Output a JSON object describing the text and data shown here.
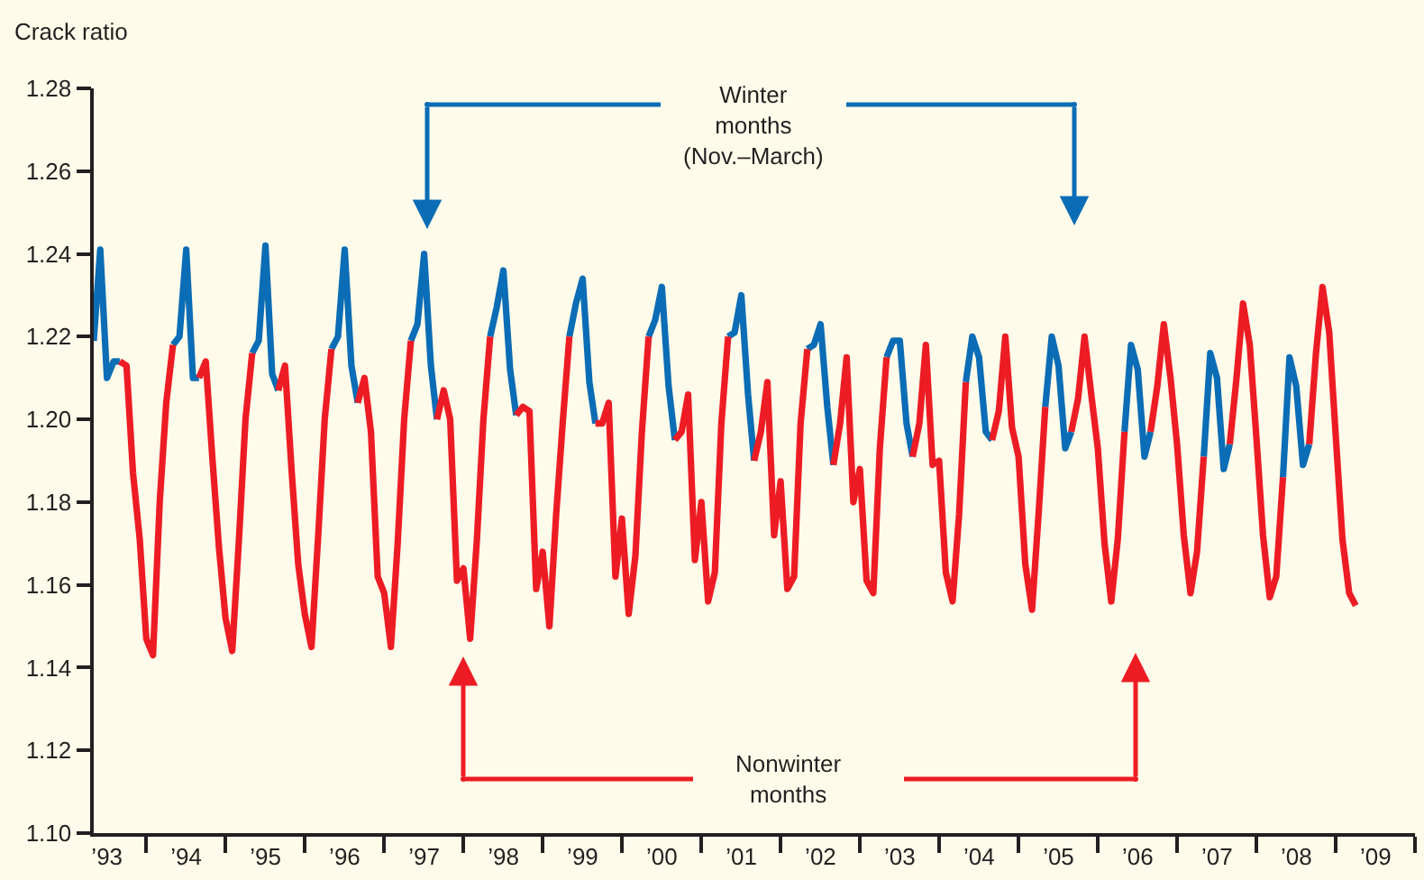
{
  "chart_data": {
    "type": "line",
    "ylabel": "Crack ratio",
    "annotations": [
      "Winter\nmonths\n(Nov.–March)",
      "Nonwinter\nmonths"
    ],
    "xlim": [
      "1992-11",
      "2009-07"
    ],
    "xticks": [
      {
        "value": "1993-01",
        "label": "’93"
      },
      {
        "value": "1994-01",
        "label": "’94"
      },
      {
        "value": "1995-01",
        "label": "’95"
      },
      {
        "value": "1996-01",
        "label": "’96"
      },
      {
        "value": "1997-01",
        "label": "’97"
      },
      {
        "value": "1998-01",
        "label": "’98"
      },
      {
        "value": "1999-01",
        "label": "’99"
      },
      {
        "value": "2000-01",
        "label": "’00"
      },
      {
        "value": "2001-01",
        "label": "’01"
      },
      {
        "value": "2002-01",
        "label": "’02"
      },
      {
        "value": "2003-01",
        "label": "’03"
      },
      {
        "value": "2004-01",
        "label": "’04"
      },
      {
        "value": "2005-01",
        "label": "’05"
      },
      {
        "value": "2006-01",
        "label": "’06"
      },
      {
        "value": "2007-01",
        "label": "’07"
      },
      {
        "value": "2008-01",
        "label": "’08"
      },
      {
        "value": "2009-01",
        "label": "’09"
      },
      {
        "value": "1993-07",
        "label": null
      },
      {
        "value": "1994-07",
        "label": null
      },
      {
        "value": "1995-07",
        "label": null
      },
      {
        "value": "1996-07",
        "label": null
      },
      {
        "value": "1997-07",
        "label": null
      },
      {
        "value": "1998-07",
        "label": null
      },
      {
        "value": "1999-07",
        "label": null
      },
      {
        "value": "2000-07",
        "label": null
      },
      {
        "value": "2001-07",
        "label": null
      },
      {
        "value": "2002-07",
        "label": null
      },
      {
        "value": "2003-07",
        "label": null
      },
      {
        "value": "2004-07",
        "label": null
      },
      {
        "value": "2005-07",
        "label": null
      },
      {
        "value": "2006-07",
        "label": null
      },
      {
        "value": "2007-07",
        "label": null
      },
      {
        "value": "2008-07",
        "label": null
      },
      {
        "value": "2009-07",
        "label": null
      }
    ],
    "ylim": [
      1.1,
      1.28
    ],
    "yticks": [
      {
        "value": 1.1,
        "label": "1.10"
      },
      {
        "value": 1.12,
        "label": "1.12"
      },
      {
        "value": 1.14,
        "label": "1.14"
      },
      {
        "value": 1.16,
        "label": "1.16"
      },
      {
        "value": 1.18,
        "label": "1.18"
      },
      {
        "value": 1.2,
        "label": "1.20"
      },
      {
        "value": 1.22,
        "label": "1.22"
      },
      {
        "value": 1.24,
        "label": "1.24"
      },
      {
        "value": 1.26,
        "label": "1.26"
      },
      {
        "value": 1.28,
        "label": "1.28"
      }
    ],
    "series": [
      {
        "color": "#0b6db5",
        "x": [
          "1992-11",
          "1992-12",
          "1993-01",
          "1993-02",
          "1993-03",
          "1993-04",
          "1993-11",
          "1993-12",
          "1994-01",
          "1994-02",
          "1994-03",
          "1994-04",
          "1994-11",
          "1994-12",
          "1995-01",
          "1995-02",
          "1995-03",
          "1995-04",
          "1995-11",
          "1995-12",
          "1996-01",
          "1996-02",
          "1996-03",
          "1996-04",
          "1996-11",
          "1996-12",
          "1997-01",
          "1997-02",
          "1997-03",
          "1997-04",
          "1997-11",
          "1997-12",
          "1998-01",
          "1998-02",
          "1998-03",
          "1998-04",
          "1998-11",
          "1998-12",
          "1999-01",
          "1999-02",
          "1999-03",
          "1999-04",
          "1999-11",
          "1999-12",
          "2000-01",
          "2000-02",
          "2000-03",
          "2000-04",
          "2000-11",
          "2000-12",
          "2001-01",
          "2001-02",
          "2001-03",
          "2001-04",
          "2001-11",
          "2001-12",
          "2002-01",
          "2002-02",
          "2002-03",
          "2002-04",
          "2002-11",
          "2002-12",
          "2003-01",
          "2003-02",
          "2003-03",
          "2003-04",
          "2003-11",
          "2003-12",
          "2004-01",
          "2004-02",
          "2004-03",
          "2004-04",
          "2004-11",
          "2004-12",
          "2005-01",
          "2005-02",
          "2005-03",
          "2005-04",
          "2005-11",
          "2005-12",
          "2006-01",
          "2006-02",
          "2006-03",
          "2006-04",
          "2006-11",
          "2006-12",
          "2007-01",
          "2007-02",
          "2007-03",
          "2007-04",
          "2007-11",
          "2007-12",
          "2008-01",
          "2008-02",
          "2008-03"
        ],
        "values": [
          1.219,
          1.241,
          1.21,
          1.214,
          1.214,
          null,
          1.218,
          1.22,
          1.241,
          1.21,
          1.21,
          null,
          1.216,
          1.219,
          1.242,
          1.211,
          1.207,
          null,
          1.217,
          1.22,
          1.241,
          1.213,
          1.204,
          null,
          1.219,
          1.223,
          1.24,
          1.213,
          1.2,
          null,
          1.22,
          1.227,
          1.236,
          1.212,
          1.201,
          null,
          1.22,
          1.228,
          1.234,
          1.209,
          1.199,
          null,
          1.22,
          1.224,
          1.232,
          1.208,
          1.195,
          null,
          1.22,
          1.221,
          1.23,
          1.206,
          1.19,
          null,
          1.217,
          1.218,
          1.223,
          1.203,
          1.189,
          null,
          1.215,
          1.219,
          1.219,
          1.199,
          1.191,
          null,
          1.209,
          1.22,
          1.215,
          1.197,
          1.195,
          null,
          1.203,
          1.22,
          1.213,
          1.193,
          1.197,
          null,
          1.197,
          1.218,
          1.212,
          1.191,
          1.197,
          null,
          1.191,
          1.216,
          1.21,
          1.188,
          1.194,
          null,
          1.186,
          1.215,
          1.208,
          1.189,
          1.194
        ]
      },
      {
        "color": "#ed1c24",
        "x": [
          "1993-03",
          "1993-04",
          "1993-05",
          "1993-06",
          "1993-07",
          "1993-08",
          "1993-09",
          "1993-10",
          "1993-11",
          "1993-12",
          "1994-03",
          "1994-04",
          "1994-05",
          "1994-06",
          "1994-07",
          "1994-08",
          "1994-09",
          "1994-10",
          "1994-11",
          "1994-12",
          "1995-03",
          "1995-04",
          "1995-05",
          "1995-06",
          "1995-07",
          "1995-08",
          "1995-09",
          "1995-10",
          "1995-11",
          "1995-12",
          "1996-03",
          "1996-04",
          "1996-05",
          "1996-06",
          "1996-07",
          "1996-08",
          "1996-09",
          "1996-10",
          "1996-11",
          "1996-12",
          "1997-03",
          "1997-04",
          "1997-05",
          "1997-06",
          "1997-07",
          "1997-08",
          "1997-09",
          "1997-10",
          "1997-11",
          "1997-12",
          "1998-03",
          "1998-04",
          "1998-05",
          "1998-06",
          "1998-07",
          "1998-08",
          "1998-09",
          "1998-10",
          "1998-11",
          "1998-12",
          "1999-03",
          "1999-04",
          "1999-05",
          "1999-06",
          "1999-07",
          "1999-08",
          "1999-09",
          "1999-10",
          "1999-11",
          "1999-12",
          "2000-03",
          "2000-04",
          "2000-05",
          "2000-06",
          "2000-07",
          "2000-08",
          "2000-09",
          "2000-10",
          "2000-11",
          "2000-12",
          "2001-03",
          "2001-04",
          "2001-05",
          "2001-06",
          "2001-07",
          "2001-08",
          "2001-09",
          "2001-10",
          "2001-11",
          "2001-12",
          "2002-03",
          "2002-04",
          "2002-05",
          "2002-06",
          "2002-07",
          "2002-08",
          "2002-09",
          "2002-10",
          "2002-11",
          "2002-12",
          "2003-03",
          "2003-04",
          "2003-05",
          "2003-06",
          "2003-07",
          "2003-08",
          "2003-09",
          "2003-10",
          "2003-11",
          "2003-12",
          "2004-03",
          "2004-04",
          "2004-05",
          "2004-06",
          "2004-07",
          "2004-08",
          "2004-09",
          "2004-10",
          "2004-11",
          "2004-12",
          "2005-03",
          "2005-04",
          "2005-05",
          "2005-06",
          "2005-07",
          "2005-08",
          "2005-09",
          "2005-10",
          "2005-11",
          "2005-12",
          "2006-03",
          "2006-04",
          "2006-05",
          "2006-06",
          "2006-07",
          "2006-08",
          "2006-09",
          "2006-10",
          "2006-11",
          "2006-12",
          "2007-03",
          "2007-04",
          "2007-05",
          "2007-06",
          "2007-07",
          "2007-08",
          "2007-09",
          "2007-10",
          "2007-11",
          "2007-12",
          "2008-03",
          "2008-04",
          "2008-05",
          "2008-06",
          "2008-07",
          "2008-08",
          "2008-09",
          "2008-10"
        ],
        "values": [
          1.214,
          1.213,
          1.187,
          1.171,
          1.147,
          1.143,
          1.18,
          1.204,
          1.218,
          null,
          1.21,
          1.214,
          1.191,
          1.169,
          1.152,
          1.144,
          1.171,
          1.2,
          1.216,
          null,
          1.207,
          1.213,
          1.188,
          1.165,
          1.153,
          1.145,
          1.172,
          1.2,
          1.217,
          null,
          1.204,
          1.21,
          1.197,
          1.162,
          1.158,
          1.145,
          1.17,
          1.2,
          1.219,
          null,
          1.2,
          1.207,
          1.2,
          1.161,
          1.164,
          1.147,
          1.171,
          1.2,
          1.22,
          null,
          1.201,
          1.203,
          1.202,
          1.159,
          1.168,
          1.15,
          1.177,
          1.199,
          1.22,
          null,
          1.199,
          1.199,
          1.204,
          1.162,
          1.176,
          1.153,
          1.167,
          1.197,
          1.22,
          null,
          1.195,
          1.197,
          1.206,
          1.166,
          1.18,
          1.156,
          1.163,
          1.199,
          1.22,
          null,
          1.19,
          1.197,
          1.209,
          1.172,
          1.185,
          1.159,
          1.162,
          1.199,
          1.217,
          null,
          1.189,
          1.199,
          1.215,
          1.18,
          1.188,
          1.161,
          1.158,
          1.193,
          1.215,
          null,
          1.191,
          1.199,
          1.218,
          1.189,
          1.19,
          1.163,
          1.156,
          1.177,
          1.209,
          null,
          1.195,
          1.202,
          1.22,
          1.198,
          1.191,
          1.165,
          1.154,
          1.177,
          1.203,
          null,
          1.197,
          1.205,
          1.22,
          1.206,
          1.193,
          1.17,
          1.156,
          1.171,
          1.197,
          null,
          1.197,
          1.208,
          1.223,
          1.21,
          1.194,
          1.172,
          1.158,
          1.168,
          1.191,
          null,
          1.194,
          1.21,
          1.228,
          1.218,
          1.196,
          1.172,
          1.157,
          1.162,
          1.186,
          null,
          1.194,
          1.216,
          1.232,
          1.221,
          1.196,
          1.171,
          1.158,
          1.155
        ]
      }
    ]
  }
}
